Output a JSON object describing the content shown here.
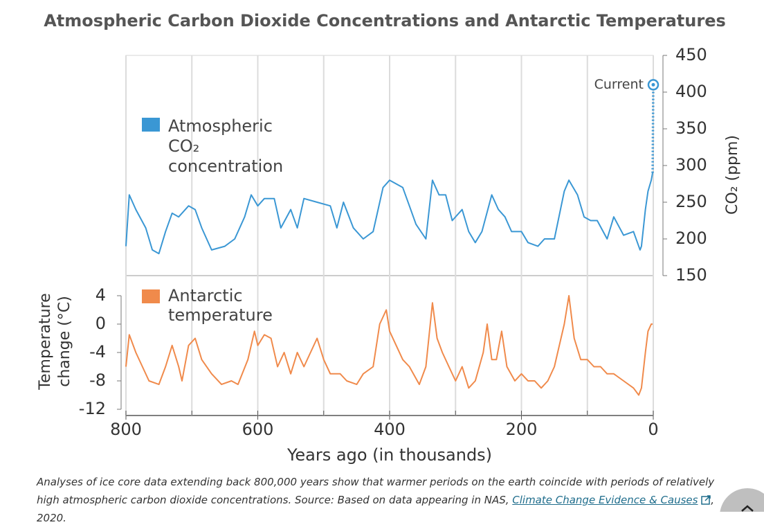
{
  "chart_data": [
    {
      "type": "line",
      "title": "Atmospheric Carbon Dioxide Concentrations and Antarctic Temperatures",
      "ylabel": "CO₂ (ppm)",
      "y_axis_side": "right",
      "xlim": [
        800,
        0
      ],
      "ylim": [
        150,
        450
      ],
      "yticks": [
        150,
        200,
        250,
        300,
        350,
        400,
        450
      ],
      "x": [
        800,
        795,
        785,
        770,
        760,
        750,
        740,
        730,
        720,
        705,
        695,
        685,
        670,
        650,
        635,
        620,
        610,
        600,
        590,
        575,
        565,
        550,
        540,
        530,
        510,
        490,
        480,
        470,
        455,
        440,
        425,
        410,
        400,
        390,
        380,
        370,
        360,
        345,
        335,
        325,
        315,
        305,
        290,
        280,
        270,
        260,
        245,
        235,
        225,
        215,
        200,
        190,
        175,
        165,
        150,
        135,
        128,
        115,
        105,
        95,
        85,
        70,
        60,
        45,
        30,
        20,
        18,
        12,
        8,
        3,
        1
      ],
      "series": [
        {
          "name": "Atmospheric CO₂ concentration",
          "color": "#3a97d4",
          "values": [
            190,
            260,
            240,
            215,
            185,
            180,
            210,
            235,
            230,
            245,
            240,
            215,
            185,
            190,
            200,
            230,
            260,
            245,
            255,
            255,
            215,
            240,
            215,
            255,
            250,
            245,
            215,
            250,
            215,
            200,
            210,
            270,
            280,
            275,
            270,
            245,
            220,
            200,
            280,
            260,
            260,
            225,
            240,
            210,
            195,
            210,
            260,
            240,
            230,
            210,
            210,
            195,
            190,
            200,
            200,
            265,
            280,
            260,
            230,
            225,
            225,
            200,
            230,
            205,
            210,
            185,
            190,
            240,
            265,
            280,
            290
          ]
        }
      ],
      "annotations": [
        {
          "label": "Current",
          "x": 0,
          "y": 410
        }
      ],
      "xminor_ticks": [
        800,
        700,
        600,
        500,
        400,
        300,
        200,
        100,
        0
      ],
      "grid": true
    },
    {
      "type": "line",
      "ylabel": "Temperature change (°C)",
      "xlabel": "Years ago (in thousands)",
      "xlim": [
        800,
        0
      ],
      "xticks": [
        800,
        600,
        400,
        200,
        0
      ],
      "ylim": [
        -12,
        4
      ],
      "yticks": [
        -12,
        -8,
        -4,
        0,
        4
      ],
      "x": [
        800,
        795,
        785,
        775,
        765,
        750,
        740,
        730,
        720,
        715,
        705,
        695,
        685,
        670,
        655,
        640,
        630,
        615,
        605,
        600,
        590,
        580,
        570,
        560,
        550,
        540,
        530,
        520,
        510,
        500,
        490,
        475,
        465,
        450,
        440,
        425,
        415,
        405,
        400,
        390,
        380,
        370,
        355,
        345,
        335,
        328,
        320,
        310,
        300,
        290,
        280,
        270,
        258,
        252,
        245,
        238,
        230,
        222,
        210,
        200,
        190,
        180,
        170,
        160,
        150,
        135,
        128,
        120,
        110,
        100,
        90,
        80,
        70,
        60,
        45,
        30,
        22,
        18,
        12,
        8,
        3,
        1
      ],
      "series": [
        {
          "name": "Antarctic temperature",
          "color": "#f08a4b",
          "values": [
            -6,
            -1.5,
            -4,
            -6,
            -8,
            -8.5,
            -6,
            -3,
            -6,
            -8,
            -3,
            -2,
            -5,
            -7,
            -8.5,
            -8,
            -8.5,
            -5,
            -1,
            -3,
            -1.5,
            -2,
            -6,
            -4,
            -7,
            -4,
            -6,
            -4,
            -2,
            -5,
            -7,
            -7,
            -8,
            -8.5,
            -7,
            -6,
            0,
            2,
            -1,
            -3,
            -5,
            -6,
            -8.5,
            -6,
            3,
            -2,
            -4,
            -6,
            -8,
            -6,
            -9,
            -8,
            -4,
            0,
            -5,
            -5,
            -1,
            -6,
            -8,
            -7,
            -8,
            -8,
            -9,
            -8,
            -6,
            0,
            4,
            -2,
            -5,
            -5,
            -6,
            -6,
            -7,
            -7,
            -8,
            -9,
            -10,
            -9,
            -4,
            -1,
            0,
            0
          ]
        }
      ],
      "grid": true
    }
  ],
  "caption": {
    "text": "Analyses of ice core data extending back 800,000 years show that warmer periods on the earth coincide with periods of relatively high atmospheric carbon dioxide concentrations. Source: Based on data appearing in NAS, ",
    "link": "Climate Change Evidence & Causes",
    "end": ", 2020."
  }
}
